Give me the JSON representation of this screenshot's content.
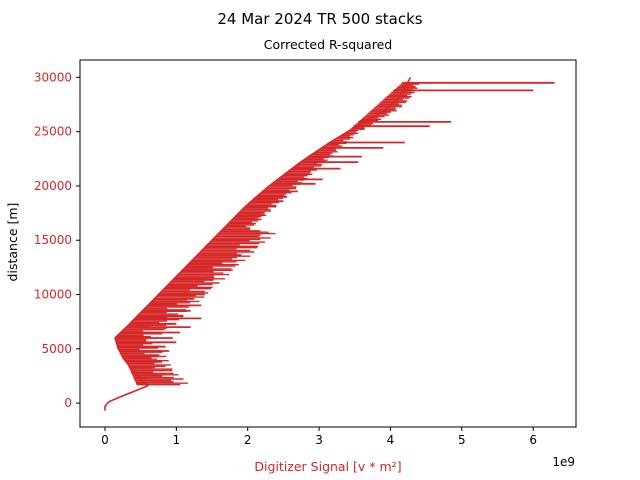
{
  "chart_data": {
    "type": "line",
    "title": "24 Mar 2024 TR 500 stacks",
    "subtitle": "Corrected R-squared",
    "xlabel": "Digitizer Signal [$v*m^2$]",
    "xlabel_display": "Digitizer Signal [v * m²]",
    "ylabel": "distance [m]",
    "x_offset_label": "1e9",
    "x_scale": 1000000000,
    "xlim": [
      -0.35,
      6.6
    ],
    "ylim": [
      -2200,
      31600
    ],
    "x_ticks": [
      0,
      1,
      2,
      3,
      4,
      5,
      6
    ],
    "x_tick_labels": [
      "0",
      "1",
      "2",
      "3",
      "4",
      "5",
      "6"
    ],
    "y_ticks": [
      0,
      5000,
      10000,
      15000,
      20000,
      25000,
      30000
    ],
    "y_tick_labels": [
      "0",
      "5000",
      "10000",
      "15000",
      "20000",
      "25000",
      "30000"
    ],
    "grid": false,
    "colors": {
      "series": "#d62728",
      "ylabel": "#000000",
      "ytick": "#d62728",
      "xlabel": "#d62728",
      "xtick": "#000000",
      "axes": "#000000"
    },
    "series": [
      {
        "points": [
          [
            0.0,
            -700
          ],
          [
            0.0,
            -300
          ],
          [
            0.05,
            100
          ],
          [
            0.15,
            400
          ],
          [
            0.3,
            800
          ],
          [
            0.45,
            1200
          ],
          [
            0.6,
            1600
          ],
          [
            0.52,
            2100
          ],
          [
            0.45,
            2600
          ],
          [
            0.38,
            3100
          ],
          [
            0.32,
            3600
          ],
          [
            0.26,
            4100
          ],
          [
            0.22,
            4600
          ],
          [
            0.18,
            5100
          ],
          [
            0.16,
            5600
          ],
          [
            0.14,
            6000
          ],
          [
            0.3,
            7000
          ],
          [
            0.45,
            8000
          ],
          [
            0.6,
            9000
          ],
          [
            0.75,
            10000
          ],
          [
            0.9,
            11000
          ],
          [
            1.05,
            12000
          ],
          [
            1.2,
            13000
          ],
          [
            1.35,
            14000
          ],
          [
            1.5,
            15000
          ],
          [
            1.65,
            16000
          ],
          [
            1.8,
            17000
          ],
          [
            1.95,
            18000
          ],
          [
            2.12,
            19000
          ],
          [
            2.3,
            20000
          ],
          [
            2.5,
            21000
          ],
          [
            2.7,
            22000
          ],
          [
            2.92,
            23000
          ],
          [
            3.15,
            24000
          ],
          [
            3.4,
            25000
          ],
          [
            3.66,
            26000
          ],
          [
            3.93,
            27000
          ],
          [
            4.1,
            28000
          ],
          [
            4.2,
            29000
          ],
          [
            4.28,
            30000
          ]
        ],
        "spikes": [
          [
            6.3,
            29500
          ],
          [
            6.0,
            28800
          ],
          [
            4.85,
            25900
          ],
          [
            4.55,
            25500
          ],
          [
            4.2,
            24000
          ],
          [
            3.9,
            23500
          ],
          [
            3.6,
            22700
          ],
          [
            3.55,
            22200
          ],
          [
            3.3,
            21600
          ],
          [
            3.05,
            20600
          ],
          [
            2.95,
            20200
          ],
          [
            2.7,
            19500
          ],
          [
            2.55,
            19000
          ],
          [
            2.5,
            18600
          ],
          [
            2.4,
            18100
          ],
          [
            2.2,
            17500
          ],
          [
            2.1,
            17000
          ],
          [
            1.95,
            16300
          ],
          [
            1.9,
            15800
          ],
          [
            1.65,
            13100
          ],
          [
            1.5,
            12500
          ],
          [
            1.45,
            12200
          ],
          [
            1.4,
            11500
          ],
          [
            1.3,
            10800
          ],
          [
            1.4,
            10000
          ],
          [
            1.25,
            9600
          ],
          [
            1.35,
            9000
          ],
          [
            1.2,
            8500
          ],
          [
            1.1,
            8000
          ],
          [
            1.35,
            7800
          ],
          [
            1.0,
            7300
          ],
          [
            1.2,
            7000
          ],
          [
            1.05,
            6500
          ],
          [
            0.95,
            6000
          ],
          [
            1.0,
            5600
          ],
          [
            0.85,
            5200
          ],
          [
            0.9,
            4800
          ],
          [
            0.75,
            4300
          ],
          [
            0.8,
            3800
          ],
          [
            0.7,
            3300
          ],
          [
            0.68,
            2800
          ],
          [
            0.6,
            2300
          ],
          [
            0.58,
            1800
          ]
        ]
      }
    ]
  }
}
